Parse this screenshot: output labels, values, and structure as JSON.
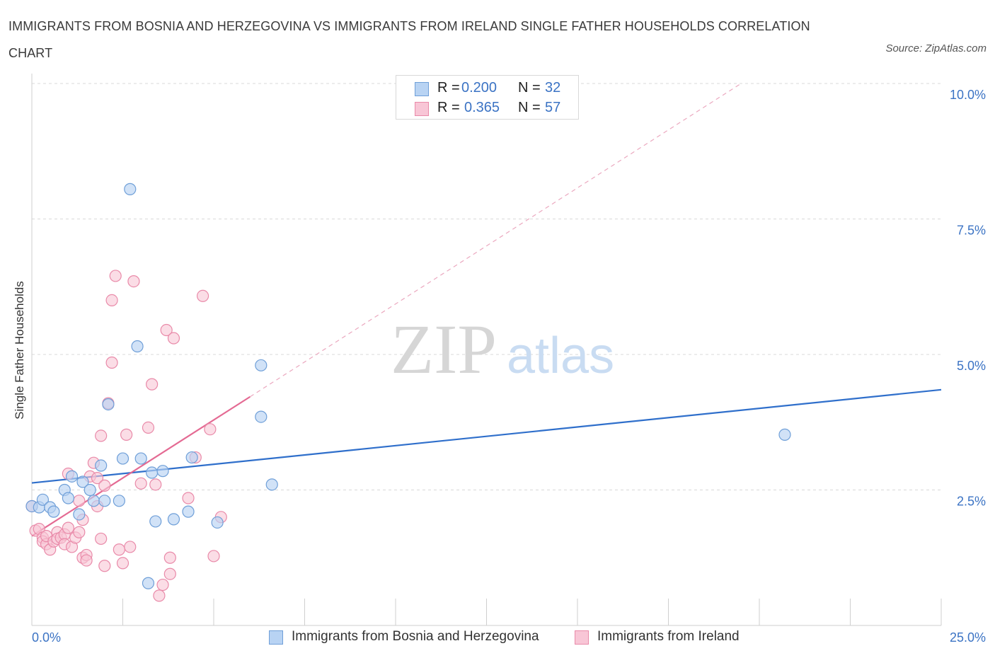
{
  "header": {
    "title": "IMMIGRANTS FROM BOSNIA AND HERZEGOVINA VS IMMIGRANTS FROM IRELAND SINGLE FATHER HOUSEHOLDS CORRELATION CHART",
    "source": "Source: ZipAtlas.com"
  },
  "watermark": {
    "zip": "ZIP",
    "atlas": "atlas"
  },
  "legend": {
    "r_label": "R =",
    "n_label": "N =",
    "series1": {
      "r": "0.200",
      "n": "32"
    },
    "series2": {
      "r": "0.365",
      "n": "57"
    }
  },
  "colors": {
    "blue_fill": "#b8d3f3",
    "blue_stroke": "#6f9fd8",
    "blue_line": "#2f6fcb",
    "pink_fill": "#f8c6d6",
    "pink_stroke": "#e98aa9",
    "pink_line": "#e46a93",
    "tick_text": "#3b73c4"
  },
  "chart_data": {
    "type": "scatter",
    "title": "IMMIGRANTS FROM BOSNIA AND HERZEGOVINA VS IMMIGRANTS FROM IRELAND SINGLE FATHER HOUSEHOLDS CORRELATION CHART",
    "xlabel": "",
    "ylabel": "Single Father Households",
    "xlim": [
      0,
      25
    ],
    "ylim": [
      0,
      10
    ],
    "x_tick_labels": [
      "0.0%",
      "25.0%"
    ],
    "y_ticks": [
      2.5,
      5.0,
      7.5,
      10.0
    ],
    "y_tick_labels": [
      "2.5%",
      "5.0%",
      "7.5%",
      "10.0%"
    ],
    "grid": true,
    "legend_position": "top-center",
    "series": [
      {
        "name": "Immigrants from Bosnia and Herzegovina",
        "r": 0.2,
        "n": 32,
        "trend": {
          "x": [
            0,
            25
          ],
          "y": [
            2.63,
            4.35
          ]
        },
        "points": [
          [
            0.0,
            2.2
          ],
          [
            0.2,
            2.18
          ],
          [
            0.3,
            2.32
          ],
          [
            0.5,
            2.18
          ],
          [
            0.6,
            2.1
          ],
          [
            0.9,
            2.5
          ],
          [
            1.0,
            2.35
          ],
          [
            1.1,
            2.75
          ],
          [
            1.3,
            2.05
          ],
          [
            1.4,
            2.65
          ],
          [
            1.6,
            2.5
          ],
          [
            1.7,
            2.3
          ],
          [
            1.9,
            2.95
          ],
          [
            2.0,
            2.3
          ],
          [
            2.1,
            4.08
          ],
          [
            2.4,
            2.3
          ],
          [
            2.5,
            3.08
          ],
          [
            2.7,
            8.05
          ],
          [
            2.9,
            5.15
          ],
          [
            3.0,
            3.08
          ],
          [
            3.2,
            0.78
          ],
          [
            3.3,
            2.82
          ],
          [
            3.4,
            1.92
          ],
          [
            3.6,
            2.85
          ],
          [
            3.9,
            1.96
          ],
          [
            4.3,
            2.1
          ],
          [
            4.4,
            3.1
          ],
          [
            5.1,
            1.9
          ],
          [
            6.3,
            4.8
          ],
          [
            6.3,
            3.85
          ],
          [
            6.6,
            2.6
          ],
          [
            20.7,
            3.52
          ]
        ]
      },
      {
        "name": "Immigrants from Ireland",
        "r": 0.365,
        "n": 57,
        "trend": {
          "x": [
            0,
            6.0
          ],
          "y": [
            1.65,
            4.22
          ],
          "extension_x": [
            6.0,
            19.5
          ],
          "extension_y": [
            4.22,
            10.0
          ]
        },
        "points": [
          [
            0.0,
            2.2
          ],
          [
            0.1,
            1.75
          ],
          [
            0.2,
            1.78
          ],
          [
            0.3,
            1.62
          ],
          [
            0.3,
            1.55
          ],
          [
            0.4,
            1.5
          ],
          [
            0.4,
            1.65
          ],
          [
            0.5,
            1.4
          ],
          [
            0.6,
            1.55
          ],
          [
            0.7,
            1.72
          ],
          [
            0.7,
            1.6
          ],
          [
            0.8,
            1.62
          ],
          [
            0.9,
            1.68
          ],
          [
            0.9,
            1.5
          ],
          [
            1.0,
            1.8
          ],
          [
            1.0,
            2.8
          ],
          [
            1.1,
            1.45
          ],
          [
            1.2,
            1.62
          ],
          [
            1.3,
            1.72
          ],
          [
            1.3,
            2.3
          ],
          [
            1.4,
            1.25
          ],
          [
            1.4,
            1.95
          ],
          [
            1.5,
            1.3
          ],
          [
            1.5,
            1.2
          ],
          [
            1.6,
            2.75
          ],
          [
            1.7,
            3.0
          ],
          [
            1.8,
            2.2
          ],
          [
            1.8,
            2.72
          ],
          [
            1.9,
            3.5
          ],
          [
            1.9,
            1.6
          ],
          [
            2.0,
            1.1
          ],
          [
            2.0,
            2.58
          ],
          [
            2.1,
            4.1
          ],
          [
            2.2,
            6.0
          ],
          [
            2.2,
            4.85
          ],
          [
            2.3,
            6.45
          ],
          [
            2.4,
            1.4
          ],
          [
            2.5,
            1.15
          ],
          [
            2.6,
            3.52
          ],
          [
            2.7,
            1.45
          ],
          [
            2.8,
            6.35
          ],
          [
            3.0,
            2.62
          ],
          [
            3.2,
            3.65
          ],
          [
            3.3,
            4.45
          ],
          [
            3.4,
            2.6
          ],
          [
            3.5,
            0.55
          ],
          [
            3.6,
            0.75
          ],
          [
            3.7,
            5.45
          ],
          [
            3.8,
            0.95
          ],
          [
            3.8,
            1.25
          ],
          [
            3.9,
            5.3
          ],
          [
            4.3,
            2.35
          ],
          [
            4.5,
            3.1
          ],
          [
            4.7,
            6.08
          ],
          [
            4.9,
            3.62
          ],
          [
            5.0,
            1.28
          ],
          [
            5.2,
            2.0
          ]
        ]
      }
    ]
  },
  "bottom_legend": {
    "series1": "Immigrants from Bosnia and Herzegovina",
    "series2": "Immigrants from Ireland"
  }
}
